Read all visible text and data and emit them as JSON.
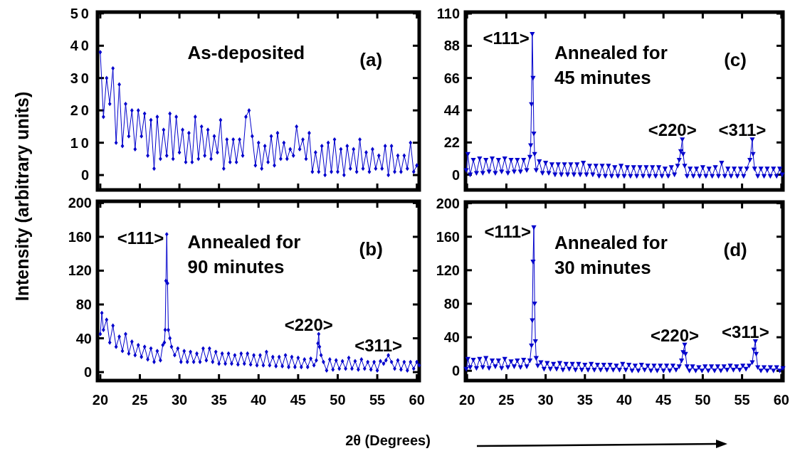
{
  "chart_data": [
    {
      "type": "line",
      "color": "#0000cc",
      "marker": "diamond",
      "line_style": "solid",
      "ylabel": "Intensity (arbitrary units)",
      "tick_labels": "y",
      "xlim": [
        19.65,
        60.3
      ],
      "ylim": [
        -4.6,
        50.4
      ],
      "xticks": [
        {
          "value": 20,
          "label": null
        },
        {
          "value": 25,
          "label": null
        },
        {
          "value": 30,
          "label": null
        },
        {
          "value": 35,
          "label": null
        },
        {
          "value": 40,
          "label": null
        },
        {
          "value": 45,
          "label": null
        },
        {
          "value": 50,
          "label": null
        },
        {
          "value": 55,
          "label": null
        },
        {
          "value": 60,
          "label": null
        }
      ],
      "yticks": [
        0,
        10,
        20,
        30,
        40,
        50
      ],
      "annotations": [
        "As-deposited",
        "(a)"
      ],
      "x": [
        20,
        20.4,
        20.8,
        21.2,
        21.6,
        22,
        22.4,
        22.8,
        23.2,
        23.6,
        24,
        24.4,
        24.8,
        25.2,
        25.6,
        26,
        26.4,
        26.8,
        27.2,
        27.6,
        28,
        28.4,
        28.8,
        29.2,
        29.6,
        30,
        30.4,
        30.8,
        31.2,
        31.6,
        32,
        32.4,
        32.8,
        33.2,
        33.6,
        34,
        34.4,
        34.8,
        35.2,
        35.6,
        36,
        36.4,
        36.8,
        37.2,
        37.6,
        38,
        38.4,
        38.8,
        39.2,
        39.6,
        40,
        40.4,
        40.8,
        41.2,
        41.6,
        42,
        42.4,
        42.8,
        43.2,
        43.6,
        44,
        44.4,
        44.8,
        45.2,
        45.6,
        46,
        46.4,
        46.8,
        47.2,
        47.6,
        48,
        48.4,
        48.8,
        49.2,
        49.6,
        50,
        50.4,
        50.8,
        51.2,
        51.6,
        52,
        52.4,
        52.8,
        53.2,
        53.6,
        54,
        54.4,
        54.8,
        55.2,
        55.6,
        56,
        56.4,
        56.8,
        57.2,
        57.6,
        58,
        58.4,
        58.8,
        59.2,
        59.6,
        60
      ],
      "values": [
        38,
        18,
        30,
        22,
        33,
        10,
        28,
        9,
        22,
        12,
        20,
        8,
        20,
        12,
        19,
        6,
        17,
        2,
        18,
        5,
        14,
        6,
        19,
        5,
        18,
        7,
        14,
        4,
        13,
        4,
        18,
        5,
        15,
        6,
        14,
        5,
        12,
        7,
        17,
        2,
        11,
        4,
        11,
        4,
        11,
        6,
        18,
        20,
        12,
        3,
        10,
        2,
        9,
        4,
        12,
        3,
        13,
        5,
        10,
        5,
        8,
        6,
        15,
        8,
        11,
        5,
        13,
        1,
        7,
        1,
        9,
        0,
        10,
        1,
        11,
        1,
        8,
        0,
        9,
        2,
        8,
        1,
        11,
        2,
        7,
        1,
        8,
        2,
        6,
        2,
        9,
        0,
        9,
        1,
        6,
        1,
        6,
        2,
        10,
        1,
        3
      ]
    },
    {
      "type": "line",
      "color": "#0000cc",
      "marker": "triangle",
      "line_style": "solid",
      "tick_labels": "y",
      "xlim": [
        19.8,
        60.2
      ],
      "ylim": [
        -10.4,
        111
      ],
      "xticks": [
        {
          "value": 20,
          "label": null
        },
        {
          "value": 25,
          "label": null
        },
        {
          "value": 30,
          "label": null
        },
        {
          "value": 35,
          "label": null
        },
        {
          "value": 40,
          "label": null
        },
        {
          "value": 45,
          "label": null
        },
        {
          "value": 50,
          "label": null
        },
        {
          "value": 55,
          "label": null
        },
        {
          "value": 60,
          "label": null
        }
      ],
      "yticks": [
        0,
        22,
        44,
        66,
        88,
        110
      ],
      "annotations": [
        "Annealed for 45 minutes",
        "(c)",
        {
          "text": "<111>",
          "x": 28.3,
          "y": 96
        },
        {
          "text": "<220>",
          "x": 47.4,
          "y": 24
        },
        {
          "text": "<311>",
          "x": 56.3,
          "y": 24
        }
      ],
      "x": [
        19.9,
        20.1,
        20.4,
        20.8,
        21.2,
        21.6,
        22,
        22.4,
        22.8,
        23.2,
        23.6,
        24,
        24.4,
        24.8,
        25.2,
        25.6,
        26,
        26.4,
        26.8,
        27.2,
        27.6,
        28,
        28.1,
        28.2,
        28.3,
        28.4,
        28.5,
        28.6,
        28.8,
        29.2,
        29.6,
        30,
        30.4,
        30.8,
        31.2,
        31.6,
        32,
        32.4,
        32.8,
        33.2,
        33.6,
        34,
        34.4,
        34.8,
        35.2,
        35.6,
        36,
        36.4,
        36.8,
        37.2,
        37.6,
        38,
        38.4,
        38.8,
        39.2,
        39.6,
        40,
        40.4,
        40.8,
        41.2,
        41.6,
        42,
        42.4,
        42.8,
        43.2,
        43.6,
        44,
        44.4,
        44.8,
        45.2,
        45.6,
        46,
        46.4,
        46.8,
        47,
        47.2,
        47.4,
        47.5,
        47.7,
        48,
        48.4,
        48.8,
        49.2,
        49.6,
        50,
        50.4,
        50.8,
        51.2,
        51.6,
        52,
        52.4,
        52.8,
        53.2,
        53.6,
        54,
        54.4,
        54.8,
        55.2,
        55.6,
        56,
        56.3,
        56.4,
        56.6,
        57,
        57.4,
        57.8,
        58.2,
        58.6,
        59,
        59.4,
        59.8,
        60.1
      ],
      "values": [
        3,
        14,
        0,
        10,
        1,
        11,
        1,
        10,
        2,
        11,
        1,
        10,
        2,
        11,
        1,
        10,
        2,
        10,
        2,
        10,
        3,
        12,
        20,
        48,
        96,
        66,
        28,
        14,
        3,
        9,
        1,
        8,
        1,
        7,
        0,
        7,
        0,
        7,
        0,
        7,
        0,
        7,
        0,
        8,
        0,
        6,
        0,
        6,
        -1,
        6,
        -1,
        6,
        -1,
        5,
        -1,
        6,
        -1,
        5,
        -1,
        5,
        -1,
        5,
        -1,
        5,
        -1,
        5,
        -1,
        5,
        -1,
        4,
        -1,
        5,
        0,
        6,
        10,
        16,
        24,
        14,
        6,
        -1,
        4,
        -1,
        4,
        -1,
        5,
        -1,
        4,
        -1,
        5,
        -1,
        8,
        -1,
        4,
        -1,
        4,
        -1,
        4,
        -1,
        4,
        10,
        24,
        14,
        4,
        -1,
        4,
        -1,
        4,
        -1,
        4,
        -1,
        4,
        0
      ]
    },
    {
      "type": "line",
      "color": "#0000cc",
      "marker": "diamond",
      "line_style": "solid",
      "xlabel": "2θ (Degrees)",
      "xlim": [
        19.65,
        60.3
      ],
      "ylim": [
        -10,
        202
      ],
      "xticks": [
        20,
        25,
        30,
        35,
        40,
        45,
        50,
        55,
        60
      ],
      "yticks": [
        0,
        40,
        80,
        120,
        160,
        200
      ],
      "annotations": [
        "Annealed for 90 minutes",
        "(b)",
        {
          "text": "<111>",
          "x": 28.4,
          "y": 163
        },
        {
          "text": "<220>",
          "x": 47.6,
          "y": 45
        },
        {
          "text": "<311>",
          "x": 56.4,
          "y": 20
        }
      ],
      "x": [
        20,
        20.2,
        20.4,
        20.8,
        21.2,
        21.6,
        22,
        22.4,
        22.8,
        23.2,
        23.6,
        24,
        24.4,
        24.8,
        25.2,
        25.6,
        26,
        26.4,
        26.8,
        27.2,
        27.6,
        27.9,
        28.1,
        28.2,
        28.3,
        28.4,
        28.5,
        28.6,
        28.8,
        29,
        29.4,
        29.8,
        30.2,
        30.6,
        31,
        31.4,
        31.8,
        32.2,
        32.6,
        33,
        33.4,
        33.8,
        34.2,
        34.6,
        35,
        35.4,
        35.8,
        36.2,
        36.6,
        37,
        37.4,
        37.8,
        38.2,
        38.6,
        39,
        39.4,
        39.8,
        40.2,
        40.6,
        41,
        41.4,
        41.8,
        42.2,
        42.6,
        43,
        43.4,
        43.8,
        44.2,
        44.6,
        45,
        45.4,
        45.8,
        46.2,
        46.6,
        47,
        47.3,
        47.5,
        47.6,
        47.7,
        47.9,
        48.2,
        48.6,
        49,
        49.4,
        49.8,
        50.2,
        50.6,
        51,
        51.4,
        51.8,
        52.2,
        52.6,
        53,
        53.4,
        53.8,
        54.2,
        54.6,
        55,
        55.4,
        55.8,
        56.1,
        56.4,
        56.8,
        57.2,
        57.6,
        58,
        58.4,
        58.8,
        59.2,
        59.6,
        60,
        60.3
      ],
      "values": [
        45,
        70,
        50,
        62,
        35,
        55,
        30,
        42,
        25,
        45,
        22,
        36,
        20,
        32,
        18,
        30,
        15,
        28,
        12,
        25,
        14,
        32,
        35,
        50,
        108,
        163,
        105,
        50,
        40,
        30,
        20,
        28,
        12,
        25,
        12,
        24,
        12,
        22,
        12,
        28,
        14,
        28,
        12,
        24,
        10,
        22,
        10,
        22,
        10,
        20,
        9,
        22,
        10,
        22,
        9,
        20,
        8,
        20,
        8,
        24,
        8,
        18,
        7,
        18,
        7,
        20,
        6,
        18,
        6,
        17,
        6,
        15,
        6,
        16,
        8,
        14,
        34,
        45,
        30,
        20,
        12,
        2,
        15,
        3,
        14,
        4,
        13,
        4,
        17,
        4,
        13,
        3,
        15,
        4,
        12,
        3,
        12,
        2,
        13,
        10,
        14,
        20,
        12,
        4,
        14,
        3,
        12,
        2,
        12,
        4,
        12,
        8
      ]
    },
    {
      "type": "line",
      "color": "#0000cc",
      "marker": "triangle",
      "line_style": "solid",
      "xlim": [
        19.8,
        60.2
      ],
      "ylim": [
        -11.7,
        201.4
      ],
      "xticks": [
        20,
        25,
        30,
        35,
        40,
        45,
        50,
        55,
        60
      ],
      "yticks": [
        0,
        40,
        80,
        120,
        160,
        200
      ],
      "annotations": [
        "Annealed for 30 minutes",
        "(d)",
        {
          "text": "<111>",
          "x": 28.5,
          "y": 171
        },
        {
          "text": "<220>",
          "x": 47.7,
          "y": 31
        },
        {
          "text": "<311>",
          "x": 56.7,
          "y": 35
        }
      ],
      "x": [
        19.9,
        20.1,
        20.4,
        20.8,
        21.2,
        21.6,
        22,
        22.4,
        22.8,
        23.2,
        23.6,
        24,
        24.4,
        24.8,
        25.2,
        25.6,
        26,
        26.4,
        26.8,
        27.2,
        27.6,
        28,
        28.2,
        28.3,
        28.4,
        28.5,
        28.6,
        28.7,
        28.8,
        29,
        29.4,
        29.8,
        30.2,
        30.6,
        31,
        31.4,
        31.8,
        32.2,
        32.6,
        33,
        33.4,
        33.8,
        34.2,
        34.6,
        35,
        35.4,
        35.8,
        36.2,
        36.6,
        37,
        37.4,
        37.8,
        38.2,
        38.6,
        39,
        39.4,
        39.8,
        40.2,
        40.6,
        41,
        41.4,
        41.8,
        42.2,
        42.6,
        43,
        43.4,
        43.8,
        44.2,
        44.6,
        45,
        45.4,
        45.8,
        46.2,
        46.6,
        47,
        47.3,
        47.5,
        47.7,
        47.8,
        48,
        48.3,
        48.7,
        49.1,
        49.5,
        49.9,
        50.3,
        50.7,
        51.1,
        51.5,
        51.9,
        52.3,
        52.7,
        53.1,
        53.5,
        53.9,
        54.3,
        54.7,
        55.1,
        55.5,
        55.9,
        56.3,
        56.5,
        56.7,
        56.8,
        57,
        57.4,
        57.8,
        58.2,
        58.6,
        59,
        59.4,
        59.8,
        60.2
      ],
      "values": [
        2,
        14,
        4,
        13,
        3,
        14,
        4,
        15,
        3,
        12,
        5,
        12,
        3,
        14,
        4,
        11,
        5,
        12,
        4,
        13,
        5,
        12,
        30,
        60,
        130,
        171,
        80,
        35,
        15,
        6,
        10,
        2,
        9,
        2,
        8,
        2,
        9,
        1,
        8,
        2,
        8,
        1,
        8,
        1,
        7,
        1,
        8,
        1,
        7,
        1,
        7,
        1,
        7,
        1,
        6,
        1,
        8,
        1,
        7,
        0,
        6,
        0,
        7,
        1,
        6,
        0,
        6,
        0,
        6,
        0,
        6,
        0,
        6,
        1,
        5,
        12,
        22,
        31,
        20,
        5,
        0,
        5,
        0,
        4,
        0,
        5,
        0,
        5,
        0,
        5,
        0,
        5,
        1,
        6,
        1,
        5,
        1,
        6,
        2,
        6,
        10,
        25,
        35,
        20,
        4,
        0,
        4,
        0,
        4,
        0,
        4,
        0,
        3
      ]
    }
  ]
}
